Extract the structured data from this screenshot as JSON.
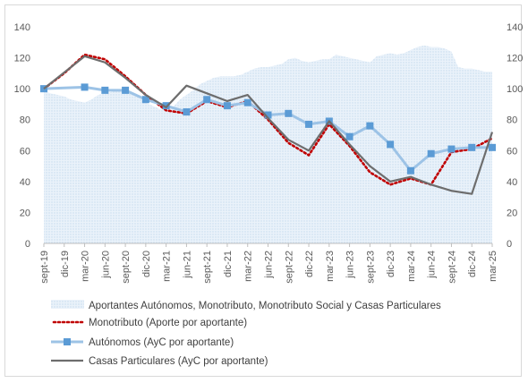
{
  "chart_data": {
    "type": "line",
    "categories": [
      "sept-19",
      "dic-19",
      "mar-20",
      "jun-20",
      "sept-20",
      "dic-20",
      "mar-21",
      "jun-21",
      "sept-21",
      "dic-21",
      "mar-22",
      "jun-22",
      "sept-22",
      "dic-22",
      "mar-23",
      "jun-23",
      "sept-23",
      "dic-23",
      "mar-24",
      "jun-24",
      "sept-24",
      "dic-24",
      "mar-25"
    ],
    "ylim": [
      0,
      140
    ],
    "yticks": [
      0,
      20,
      40,
      60,
      80,
      100,
      120,
      140
    ],
    "xlabel": "",
    "ylabel": "",
    "grid": false,
    "legend_position": "bottom",
    "area_series": {
      "name": "Aportantes Autónomos, Monotributo, Monotributo Social y Casas Particulares",
      "color": "#dbe8f5",
      "x": [
        0,
        0.33,
        0.67,
        1,
        1.33,
        1.67,
        2,
        2.33,
        2.67,
        3,
        3.33,
        3.67,
        4,
        4.33,
        4.67,
        5,
        5.33,
        5.67,
        6,
        6.33,
        6.67,
        7,
        7.33,
        7.67,
        8,
        8.33,
        8.67,
        9,
        9.33,
        9.67,
        10,
        10.33,
        10.67,
        11,
        11.33,
        11.67,
        12,
        12.33,
        12.67,
        13,
        13.33,
        13.67,
        14,
        14.33,
        14.67,
        15,
        15.33,
        15.67,
        16,
        16.33,
        16.67,
        17,
        17.33,
        17.67,
        18,
        18.33,
        18.67,
        19,
        19.33,
        19.67,
        20,
        20.33,
        20.67,
        21,
        21.33,
        21.67,
        22
      ],
      "values": [
        99,
        97,
        96,
        95,
        93,
        92,
        91,
        93,
        96,
        97,
        98,
        99,
        100,
        97,
        94,
        91,
        89,
        87,
        86,
        88,
        93,
        96,
        99,
        103,
        105,
        107,
        108,
        108,
        108,
        109,
        111,
        113,
        114,
        114,
        115,
        116,
        119,
        120,
        118,
        117,
        118,
        119,
        119,
        122,
        121,
        120,
        119,
        118,
        117,
        121,
        122,
        123,
        122,
        123,
        125,
        127,
        128,
        127,
        127,
        126,
        124,
        114,
        113,
        113,
        112,
        111,
        111
      ]
    },
    "series": [
      {
        "name": "Monotributo (Aporte por aportante)",
        "color": "#c00000",
        "style": "dotted",
        "values": [
          100,
          110,
          122,
          119,
          108,
          96,
          86,
          84,
          92,
          88,
          92,
          80,
          65,
          57,
          77,
          63,
          46,
          38,
          42,
          38,
          59,
          61,
          68
        ]
      },
      {
        "name": "Autónomos (AyC por aportante)",
        "color": "#9dc3e6",
        "marker": "square",
        "values": [
          100,
          null,
          101,
          99,
          99,
          93,
          89,
          85,
          93,
          89,
          91,
          83,
          84,
          77,
          79,
          69,
          76,
          64,
          47,
          58,
          61,
          62,
          62
        ]
      },
      {
        "name": "Casas Particulares (AyC por aportante)",
        "color": "#6d6d6d",
        "style": "solid",
        "values": [
          100,
          null,
          121,
          117,
          107,
          96,
          88,
          102,
          97,
          92,
          96,
          81,
          67,
          60,
          79,
          64,
          50,
          40,
          43,
          38,
          34,
          32,
          72
        ]
      }
    ]
  }
}
